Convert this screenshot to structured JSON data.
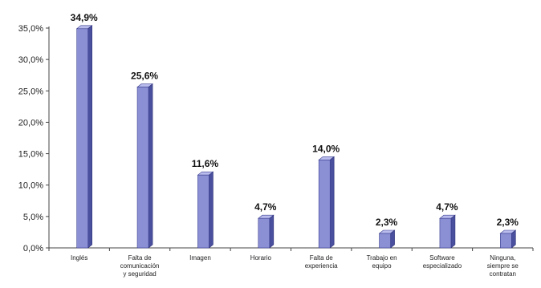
{
  "chart_data": {
    "type": "bar",
    "title": "",
    "xlabel": "",
    "ylabel": "",
    "ylim": [
      0,
      35
    ],
    "yticks": [
      "0,0%",
      "5,0%",
      "10,0%",
      "15,0%",
      "20,0%",
      "25,0%",
      "30,0%",
      "35,0%"
    ],
    "grid": false,
    "style": "3d",
    "bar_color": "#8b8fd4",
    "categories": [
      [
        "Inglés"
      ],
      [
        "Falta de",
        "comunicación",
        "y seguridad"
      ],
      [
        "Imagen"
      ],
      [
        "Horario"
      ],
      [
        "Falta de",
        "experiencia"
      ],
      [
        "Trabajo en",
        "equipo"
      ],
      [
        "Software",
        "especializado"
      ],
      [
        "Ninguna,",
        "siempre se",
        "contratan"
      ]
    ],
    "values": [
      34.9,
      25.6,
      11.6,
      4.7,
      14.0,
      2.3,
      4.7,
      2.3
    ],
    "data_labels": [
      "34,9%",
      "25,6%",
      "11,6%",
      "4,7%",
      "14,0%",
      "2,3%",
      "4,7%",
      "2,3%"
    ]
  }
}
